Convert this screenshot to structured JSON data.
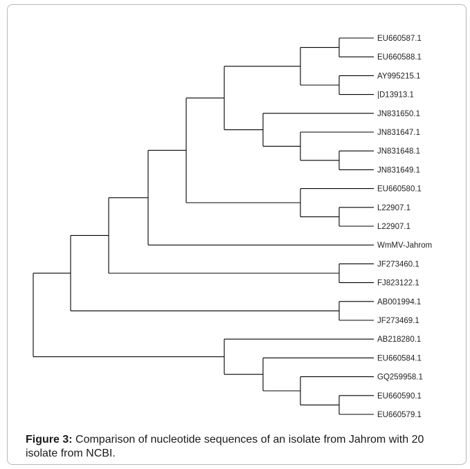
{
  "tree": {
    "label": null,
    "children": [
      {
        "children": [
          {
            "children": [
              {
                "children": [
                  {
                    "children": [
                      {
                        "children": [
                          {
                            "children": [
                              {
                                "label": "EU660587.1"
                              },
                              {
                                "label": "EU660588.1"
                              }
                            ]
                          },
                          {
                            "children": [
                              {
                                "label": "AY995215.1"
                              },
                              {
                                "label": "|D13913.1"
                              }
                            ]
                          }
                        ]
                      },
                      {
                        "children": [
                          {
                            "label": "JN831650.1"
                          },
                          {
                            "children": [
                              {
                                "label": "JN831647.1"
                              },
                              {
                                "children": [
                                  {
                                    "label": "JN831648.1"
                                  },
                                  {
                                    "label": "JN831649.1"
                                  }
                                ]
                              }
                            ]
                          }
                        ]
                      }
                    ]
                  },
                  {
                    "children": [
                      {
                        "label": "EU660580.1"
                      },
                      {
                        "children": [
                          {
                            "label": "L22907.1"
                          },
                          {
                            "label": "L22907.1"
                          }
                        ]
                      }
                    ]
                  }
                ]
              },
              {
                "label": "WmMV-Jahrom"
              }
            ]
          },
          {
            "children": [
              {
                "label": "JF273460.1"
              },
              {
                "label": "FJ823122.1"
              }
            ]
          }
        ]
      },
      {
        "children": [
          {
            "label": "AB001994.1"
          },
          {
            "label": "JF273469.1"
          }
        ]
      }
    ]
  },
  "tree_outgroup": {
    "children": [
      {
        "label": "AB218280.1"
      },
      {
        "children": [
          {
            "label": "EU660584.1"
          },
          {
            "children": [
              {
                "label": "GQ259958.1"
              },
              {
                "children": [
                  {
                    "label": "EU660590.1"
                  },
                  {
                    "label": "EU660579.1"
                  }
                ]
              }
            ]
          }
        ]
      }
    ]
  },
  "caption": {
    "label": "Figure 3:",
    "text": " Comparison of nucleotide sequences of an isolate from Jahrom with 20 isolate from NCBI."
  },
  "colors": {
    "branch": "#000000",
    "text": "#222222",
    "border": "#b8b8b8"
  }
}
